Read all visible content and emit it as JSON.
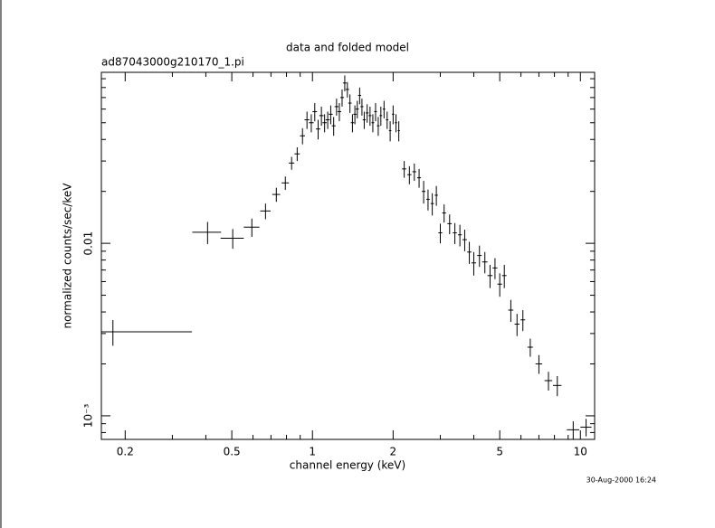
{
  "chart_data": {
    "type": "scatter",
    "title": "data and folded model",
    "subtitle": "ad87043000g210170_1.pi",
    "xlabel": "channel energy (keV)",
    "ylabel": "normalized counts/sec/keV",
    "timestamp": "30-Aug-2000 16:24",
    "log_x": true,
    "log_y": true,
    "xlim": [
      0.163,
      11.3
    ],
    "ylim": [
      0.00073,
      0.098
    ],
    "xticks": [
      0.2,
      0.5,
      1,
      2,
      5,
      10
    ],
    "xminor_ticks": [
      0.3,
      0.4,
      0.6,
      0.7,
      0.8,
      0.9,
      3,
      4,
      6,
      7,
      8,
      9
    ],
    "yticks": [
      {
        "value": 0.001,
        "label": "10⁻³"
      },
      0.01
    ],
    "yminor_ticks": [
      0.0008,
      0.0009,
      0.002,
      0.003,
      0.004,
      0.005,
      0.006,
      0.007,
      0.008,
      0.009,
      0.02,
      0.03,
      0.04,
      0.05,
      0.06,
      0.07,
      0.08,
      0.09
    ],
    "color": "#000000",
    "x": [
      0.18,
      0.406,
      0.504,
      0.594,
      0.668,
      0.733,
      0.792,
      0.836,
      0.877,
      0.918,
      0.954,
      0.99,
      1.02,
      1.05,
      1.08,
      1.11,
      1.14,
      1.17,
      1.2,
      1.23,
      1.26,
      1.29,
      1.32,
      1.35,
      1.38,
      1.41,
      1.44,
      1.47,
      1.5,
      1.53,
      1.56,
      1.6,
      1.64,
      1.68,
      1.72,
      1.76,
      1.8,
      1.85,
      1.9,
      1.95,
      2.0,
      2.05,
      2.1,
      2.2,
      2.3,
      2.4,
      2.5,
      2.6,
      2.7,
      2.8,
      2.9,
      3.0,
      3.1,
      3.25,
      3.4,
      3.55,
      3.7,
      3.85,
      4.0,
      4.2,
      4.4,
      4.6,
      4.8,
      5.0,
      5.2,
      5.5,
      5.8,
      6.1,
      6.5,
      7.0,
      7.6,
      8.2,
      9.4,
      10.5
    ],
    "xerr": [
      0.175,
      0.05,
      0.05,
      0.04,
      0.03,
      0.025,
      0.025,
      0.02,
      0.02,
      0.02,
      0.02,
      0.02,
      0.02,
      0.02,
      0.02,
      0.02,
      0.02,
      0.02,
      0.02,
      0.02,
      0.02,
      0.02,
      0.02,
      0.02,
      0.02,
      0.02,
      0.02,
      0.02,
      0.02,
      0.02,
      0.02,
      0.02,
      0.02,
      0.02,
      0.02,
      0.02,
      0.02,
      0.02,
      0.02,
      0.02,
      0.02,
      0.02,
      0.02,
      0.04,
      0.04,
      0.04,
      0.04,
      0.04,
      0.04,
      0.04,
      0.04,
      0.05,
      0.05,
      0.06,
      0.06,
      0.06,
      0.07,
      0.07,
      0.08,
      0.08,
      0.1,
      0.1,
      0.1,
      0.1,
      0.1,
      0.12,
      0.12,
      0.12,
      0.15,
      0.2,
      0.25,
      0.3,
      0.5,
      0.5
    ],
    "values": [
      0.00307,
      0.0116,
      0.0107,
      0.0124,
      0.0154,
      0.0192,
      0.0224,
      0.0292,
      0.033,
      0.042,
      0.052,
      0.05,
      0.058,
      0.046,
      0.055,
      0.05,
      0.052,
      0.056,
      0.048,
      0.062,
      0.058,
      0.07,
      0.085,
      0.078,
      0.065,
      0.05,
      0.056,
      0.06,
      0.072,
      0.062,
      0.052,
      0.057,
      0.055,
      0.05,
      0.058,
      0.048,
      0.055,
      0.06,
      0.052,
      0.045,
      0.056,
      0.05,
      0.045,
      0.027,
      0.025,
      0.026,
      0.024,
      0.02,
      0.018,
      0.017,
      0.019,
      0.0115,
      0.015,
      0.013,
      0.0115,
      0.0112,
      0.0105,
      0.0089,
      0.0077,
      0.0085,
      0.0078,
      0.0065,
      0.0072,
      0.0058,
      0.0065,
      0.0041,
      0.0034,
      0.0036,
      0.0025,
      0.002,
      0.0016,
      0.0015,
      0.00083,
      0.00086
    ],
    "yerr": [
      0.00052,
      0.0017,
      0.0014,
      0.0015,
      0.0016,
      0.0018,
      0.002,
      0.0025,
      0.003,
      0.0045,
      0.006,
      0.006,
      0.007,
      0.006,
      0.007,
      0.006,
      0.006,
      0.007,
      0.006,
      0.007,
      0.007,
      0.008,
      0.009,
      0.008,
      0.008,
      0.006,
      0.007,
      0.007,
      0.008,
      0.007,
      0.006,
      0.007,
      0.007,
      0.006,
      0.007,
      0.006,
      0.007,
      0.007,
      0.006,
      0.006,
      0.007,
      0.006,
      0.006,
      0.003,
      0.003,
      0.003,
      0.003,
      0.003,
      0.0025,
      0.0025,
      0.0025,
      0.0015,
      0.0018,
      0.0017,
      0.0016,
      0.0016,
      0.0015,
      0.0013,
      0.0012,
      0.0012,
      0.0011,
      0.001,
      0.001,
      0.0009,
      0.001,
      0.0006,
      0.0005,
      0.0005,
      0.0003,
      0.00025,
      0.0002,
      0.0002,
      0.0001,
      0.0001
    ]
  }
}
